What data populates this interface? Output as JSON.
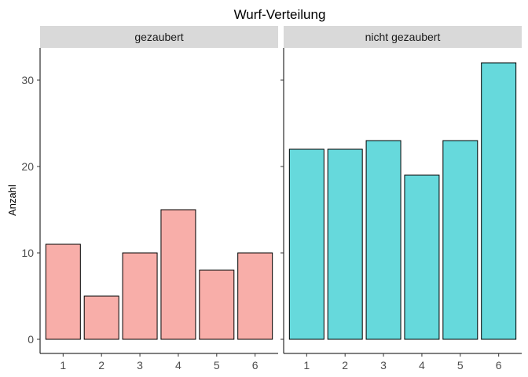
{
  "chart_data": {
    "type": "bar",
    "title": "Wurf-Verteilung",
    "xlabel": "",
    "ylabel": "Anzahl",
    "ylim": [
      0,
      34
    ],
    "yticks": [
      0,
      10,
      20,
      30
    ],
    "categories": [
      "1",
      "2",
      "3",
      "4",
      "5",
      "6"
    ],
    "grid": false,
    "panels": [
      {
        "label": "gezaubert",
        "values": [
          11,
          5,
          10,
          15,
          8,
          10
        ],
        "color": "#f8aea9"
      },
      {
        "label": "nicht gezaubert",
        "values": [
          22,
          22,
          23,
          19,
          23,
          32
        ],
        "color": "#66d9dc"
      }
    ]
  }
}
